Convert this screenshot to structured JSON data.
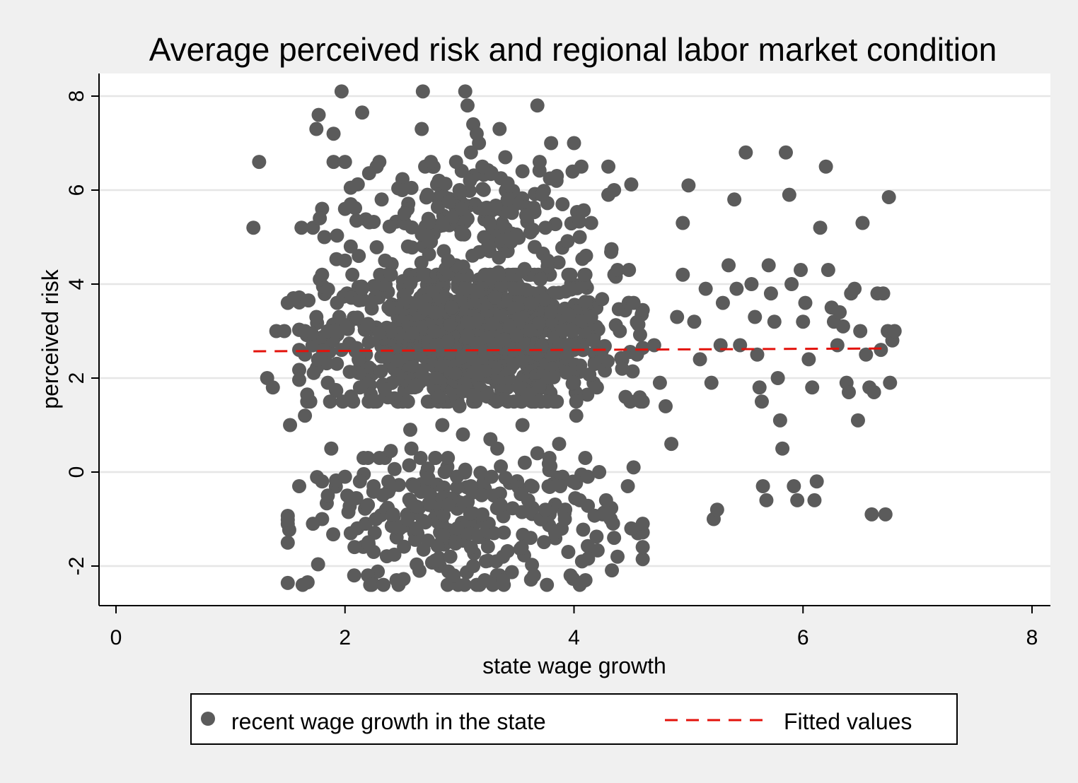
{
  "chart_data": {
    "type": "scatter",
    "title": "Average perceived risk and regional labor market condition",
    "xlabel": "state wage growth",
    "ylabel": "perceived risk",
    "xlim": [
      0,
      8
    ],
    "ylim": [
      -2.8,
      8.2
    ],
    "xticks": [
      "0",
      "2",
      "4",
      "6",
      "8"
    ],
    "yticks": [
      "-2",
      "0",
      "2",
      "4",
      "6",
      "8"
    ],
    "grid": "horizontal",
    "legend_position": "bottom",
    "colors": {
      "scatter": "#5b5b5b",
      "fit": "#e3120b",
      "background": "#f0f0f0",
      "plot_background": "#ffffff"
    },
    "series": [
      {
        "name": "recent wage growth in the state",
        "kind": "scatter",
        "points": [
          [
            1.2,
            5.2
          ],
          [
            1.25,
            6.6
          ],
          [
            1.32,
            2.0
          ],
          [
            1.37,
            1.8
          ],
          [
            1.4,
            3.0
          ],
          [
            1.47,
            3.0
          ],
          [
            1.5,
            3.6
          ],
          [
            1.52,
            1.0
          ],
          [
            1.55,
            3.7
          ],
          [
            1.6,
            2.6
          ],
          [
            1.62,
            5.2
          ],
          [
            1.65,
            3.0
          ],
          [
            1.65,
            2.5
          ],
          [
            1.65,
            1.2
          ],
          [
            1.67,
            1.5
          ],
          [
            1.67,
            1.65
          ],
          [
            1.6,
            -0.3
          ],
          [
            1.63,
            -2.4
          ],
          [
            1.72,
            5.2
          ],
          [
            1.75,
            7.3
          ],
          [
            1.75,
            3.3
          ],
          [
            1.77,
            7.6
          ],
          [
            1.78,
            4.1
          ],
          [
            1.8,
            4.2
          ],
          [
            1.78,
            5.4
          ],
          [
            1.82,
            5.0
          ],
          [
            1.85,
            3.0
          ],
          [
            1.85,
            1.9
          ],
          [
            1.8,
            -1.0
          ],
          [
            1.8,
            -0.2
          ],
          [
            1.85,
            -0.5
          ],
          [
            1.72,
            -1.1
          ],
          [
            1.9,
            7.2
          ],
          [
            1.9,
            6.6
          ],
          [
            1.88,
            0.5
          ],
          [
            1.93,
            3.6
          ],
          [
            1.95,
            3.3
          ],
          [
            1.97,
            2.6
          ],
          [
            1.98,
            1.5
          ],
          [
            2.0,
            5.6
          ],
          [
            2.05,
            5.7
          ],
          [
            2.0,
            -0.1
          ],
          [
            2.02,
            -0.5
          ],
          [
            2.05,
            -1.3
          ],
          [
            2.03,
            -0.85
          ],
          [
            2.08,
            -2.2
          ],
          [
            1.97,
            8.1
          ],
          [
            2.0,
            6.6
          ],
          [
            2.05,
            6.05
          ],
          [
            2.1,
            5.35
          ],
          [
            2.12,
            4.6
          ],
          [
            2.15,
            3.9
          ],
          [
            2.0,
            4.5
          ],
          [
            2.13,
            -0.2
          ],
          [
            2.18,
            -1.1
          ],
          [
            2.2,
            -2.2
          ],
          [
            2.22,
            -2.4
          ],
          [
            2.25,
            -1.7
          ],
          [
            2.2,
            -0.7
          ],
          [
            2.05,
            4.8
          ],
          [
            2.15,
            7.65
          ],
          [
            2.2,
            0.3
          ],
          [
            2.25,
            -0.3
          ],
          [
            2.27,
            -1.0
          ],
          [
            2.3,
            6.6
          ],
          [
            2.32,
            5.8
          ],
          [
            2.35,
            4.5
          ],
          [
            2.38,
            3.5
          ],
          [
            2.4,
            0.45
          ],
          [
            2.42,
            -0.9
          ],
          [
            2.45,
            -2.3
          ],
          [
            2.5,
            6.0
          ],
          [
            2.52,
            5.5
          ],
          [
            2.55,
            4.8
          ],
          [
            2.55,
            1.5
          ],
          [
            2.57,
            0.9
          ],
          [
            2.58,
            0.5
          ],
          [
            2.6,
            -0.3
          ],
          [
            2.62,
            -1.2
          ],
          [
            2.65,
            -2.1
          ],
          [
            2.67,
            7.3
          ],
          [
            2.7,
            6.5
          ],
          [
            2.72,
            5.9
          ],
          [
            2.75,
            4.9
          ],
          [
            2.78,
            3.4
          ],
          [
            2.8,
            2.0
          ],
          [
            2.82,
            1.6
          ],
          [
            2.85,
            1.0
          ],
          [
            2.87,
            0.0
          ],
          [
            2.9,
            -0.7
          ],
          [
            2.92,
            -1.8
          ],
          [
            2.95,
            -2.2
          ],
          [
            2.97,
            6.6
          ],
          [
            3.0,
            6.0
          ],
          [
            3.02,
            5.1
          ],
          [
            3.05,
            3.9
          ],
          [
            3.07,
            2.9
          ],
          [
            3.1,
            -0.3
          ],
          [
            3.12,
            -2.0
          ],
          [
            3.15,
            -2.4
          ],
          [
            3.05,
            8.1
          ],
          [
            3.12,
            7.4
          ],
          [
            3.17,
            7.0
          ],
          [
            3.2,
            6.5
          ],
          [
            3.22,
            5.6
          ],
          [
            3.25,
            4.8
          ],
          [
            3.27,
            0.7
          ],
          [
            3.3,
            -0.5
          ],
          [
            3.3,
            -1.3
          ],
          [
            3.32,
            -1.9
          ],
          [
            3.35,
            -2.2
          ],
          [
            3.2,
            -0.9
          ],
          [
            3.07,
            7.8
          ],
          [
            3.15,
            7.2
          ],
          [
            3.22,
            -2.3
          ],
          [
            3.28,
            -0.1
          ],
          [
            3.33,
            0.5
          ],
          [
            3.36,
            -0.7
          ],
          [
            3.38,
            -2.3
          ],
          [
            3.38,
            -1.8
          ],
          [
            3.1,
            6.8
          ],
          [
            3.02,
            5.6
          ],
          [
            2.97,
            4.4
          ],
          [
            2.98,
            -1.2
          ],
          [
            2.68,
            8.1
          ],
          [
            2.75,
            6.6
          ],
          [
            2.82,
            6.2
          ],
          [
            2.85,
            5.3
          ],
          [
            2.9,
            4.5
          ],
          [
            2.93,
            3.5
          ],
          [
            2.96,
            2.1
          ],
          [
            3.0,
            1.4
          ],
          [
            3.03,
            0.8
          ],
          [
            3.05,
            0.05
          ],
          [
            3.1,
            -1.6
          ],
          [
            3.35,
            7.3
          ],
          [
            3.4,
            6.7
          ],
          [
            3.42,
            5.8
          ],
          [
            3.45,
            4.9
          ],
          [
            3.48,
            3.9
          ],
          [
            3.5,
            2.9
          ],
          [
            3.52,
            1.8
          ],
          [
            3.55,
            1.0
          ],
          [
            3.57,
            0.2
          ],
          [
            3.6,
            -0.6
          ],
          [
            3.62,
            -1.4
          ],
          [
            3.65,
            -2.2
          ],
          [
            3.68,
            7.8
          ],
          [
            3.7,
            6.6
          ],
          [
            3.72,
            5.9
          ],
          [
            3.75,
            5.2
          ],
          [
            3.77,
            4.5
          ],
          [
            3.8,
            3.4
          ],
          [
            3.82,
            2.5
          ],
          [
            3.85,
            1.5
          ],
          [
            3.87,
            0.6
          ],
          [
            3.9,
            -0.1
          ],
          [
            3.92,
            -1.0
          ],
          [
            3.95,
            -1.7
          ],
          [
            3.97,
            -2.2
          ],
          [
            3.8,
            7.0
          ],
          [
            3.85,
            6.3
          ],
          [
            3.9,
            5.7
          ],
          [
            3.95,
            4.2
          ],
          [
            3.98,
            3.0
          ],
          [
            4.0,
            1.9
          ],
          [
            4.02,
            1.2
          ],
          [
            4.05,
            -0.6
          ],
          [
            4.07,
            -1.9
          ],
          [
            4.1,
            -2.3
          ],
          [
            4.0,
            7.0
          ],
          [
            3.55,
            6.4
          ],
          [
            3.62,
            5.1
          ],
          [
            3.68,
            0.4
          ],
          [
            3.75,
            -0.8
          ],
          [
            3.88,
            -0.3
          ],
          [
            4.05,
            5.0
          ],
          [
            4.1,
            4.2
          ],
          [
            4.15,
            3.3
          ],
          [
            4.18,
            2.3
          ],
          [
            4.2,
            1.8
          ],
          [
            4.22,
            0.0
          ],
          [
            4.25,
            -0.9
          ],
          [
            4.15,
            5.3
          ],
          [
            4.12,
            -0.1
          ],
          [
            4.05,
            -2.4
          ],
          [
            4.3,
            6.5
          ],
          [
            4.35,
            6.0
          ],
          [
            4.38,
            4.3
          ],
          [
            4.4,
            3.0
          ],
          [
            4.42,
            2.2
          ],
          [
            4.45,
            1.6
          ],
          [
            4.47,
            -0.3
          ],
          [
            4.5,
            -1.2
          ],
          [
            4.3,
            5.9
          ],
          [
            4.28,
            -0.6
          ],
          [
            4.32,
            -1.0
          ],
          [
            4.35,
            -1.4
          ],
          [
            4.38,
            -1.8
          ],
          [
            4.48,
            4.3
          ],
          [
            4.52,
            3.6
          ],
          [
            4.55,
            2.5
          ],
          [
            4.58,
            1.5
          ],
          [
            4.52,
            0.1
          ],
          [
            4.6,
            -1.1
          ],
          [
            4.7,
            2.7
          ],
          [
            4.75,
            1.9
          ],
          [
            4.8,
            1.4
          ],
          [
            4.85,
            0.6
          ],
          [
            4.9,
            3.3
          ],
          [
            4.95,
            4.2
          ],
          [
            5.0,
            6.1
          ],
          [
            4.95,
            5.3
          ],
          [
            5.05,
            3.2
          ],
          [
            5.1,
            2.4
          ],
          [
            5.15,
            3.9
          ],
          [
            5.2,
            1.9
          ],
          [
            5.22,
            -1.0
          ],
          [
            5.25,
            -0.8
          ],
          [
            5.28,
            2.7
          ],
          [
            5.3,
            3.6
          ],
          [
            5.35,
            4.4
          ],
          [
            5.4,
            5.8
          ],
          [
            5.42,
            3.9
          ],
          [
            5.45,
            2.7
          ],
          [
            5.5,
            6.8
          ],
          [
            5.55,
            4.0
          ],
          [
            5.58,
            3.3
          ],
          [
            5.6,
            2.5
          ],
          [
            5.62,
            1.8
          ],
          [
            5.64,
            1.5
          ],
          [
            5.65,
            -0.3
          ],
          [
            5.68,
            -0.6
          ],
          [
            5.7,
            4.4
          ],
          [
            5.72,
            3.8
          ],
          [
            5.75,
            3.2
          ],
          [
            5.78,
            2.0
          ],
          [
            5.8,
            1.1
          ],
          [
            5.82,
            0.5
          ],
          [
            5.85,
            6.8
          ],
          [
            5.88,
            5.9
          ],
          [
            5.9,
            4.0
          ],
          [
            5.92,
            -0.3
          ],
          [
            5.95,
            -0.6
          ],
          [
            5.98,
            4.3
          ],
          [
            6.0,
            3.2
          ],
          [
            6.02,
            3.6
          ],
          [
            6.05,
            2.4
          ],
          [
            6.08,
            1.8
          ],
          [
            6.1,
            -0.6
          ],
          [
            6.12,
            -0.2
          ],
          [
            6.15,
            5.2
          ],
          [
            6.2,
            6.5
          ],
          [
            6.22,
            4.3
          ],
          [
            6.25,
            3.5
          ],
          [
            6.27,
            3.2
          ],
          [
            6.3,
            2.7
          ],
          [
            6.32,
            3.4
          ],
          [
            6.35,
            3.1
          ],
          [
            6.38,
            1.9
          ],
          [
            6.4,
            1.7
          ],
          [
            6.42,
            3.8
          ],
          [
            6.45,
            3.9
          ],
          [
            6.48,
            1.1
          ],
          [
            6.5,
            3.0
          ],
          [
            6.52,
            5.3
          ],
          [
            6.55,
            2.5
          ],
          [
            6.58,
            1.8
          ],
          [
            6.6,
            -0.9
          ],
          [
            6.62,
            1.7
          ],
          [
            6.65,
            3.8
          ],
          [
            6.68,
            2.6
          ],
          [
            6.7,
            3.8
          ],
          [
            6.72,
            -0.9
          ],
          [
            6.74,
            3.0
          ],
          [
            6.75,
            5.85
          ],
          [
            6.76,
            1.9
          ],
          [
            6.78,
            2.8
          ],
          [
            6.8,
            3.0
          ]
        ],
        "dense_clusters": [
          {
            "x_range": [
              1.8,
              4.4
            ],
            "y_range": [
              1.5,
              4.2
            ],
            "count": 900
          },
          {
            "x_range": [
              2.0,
              4.3
            ],
            "y_range": [
              4.2,
              6.5
            ],
            "count": 160
          },
          {
            "x_range": [
              1.7,
              4.4
            ],
            "y_range": [
              -2.4,
              0.3
            ],
            "count": 230
          }
        ]
      },
      {
        "name": "Fitted values",
        "kind": "line",
        "style": "dashed",
        "points": [
          [
            1.2,
            2.57
          ],
          [
            6.75,
            2.63
          ]
        ]
      }
    ]
  }
}
